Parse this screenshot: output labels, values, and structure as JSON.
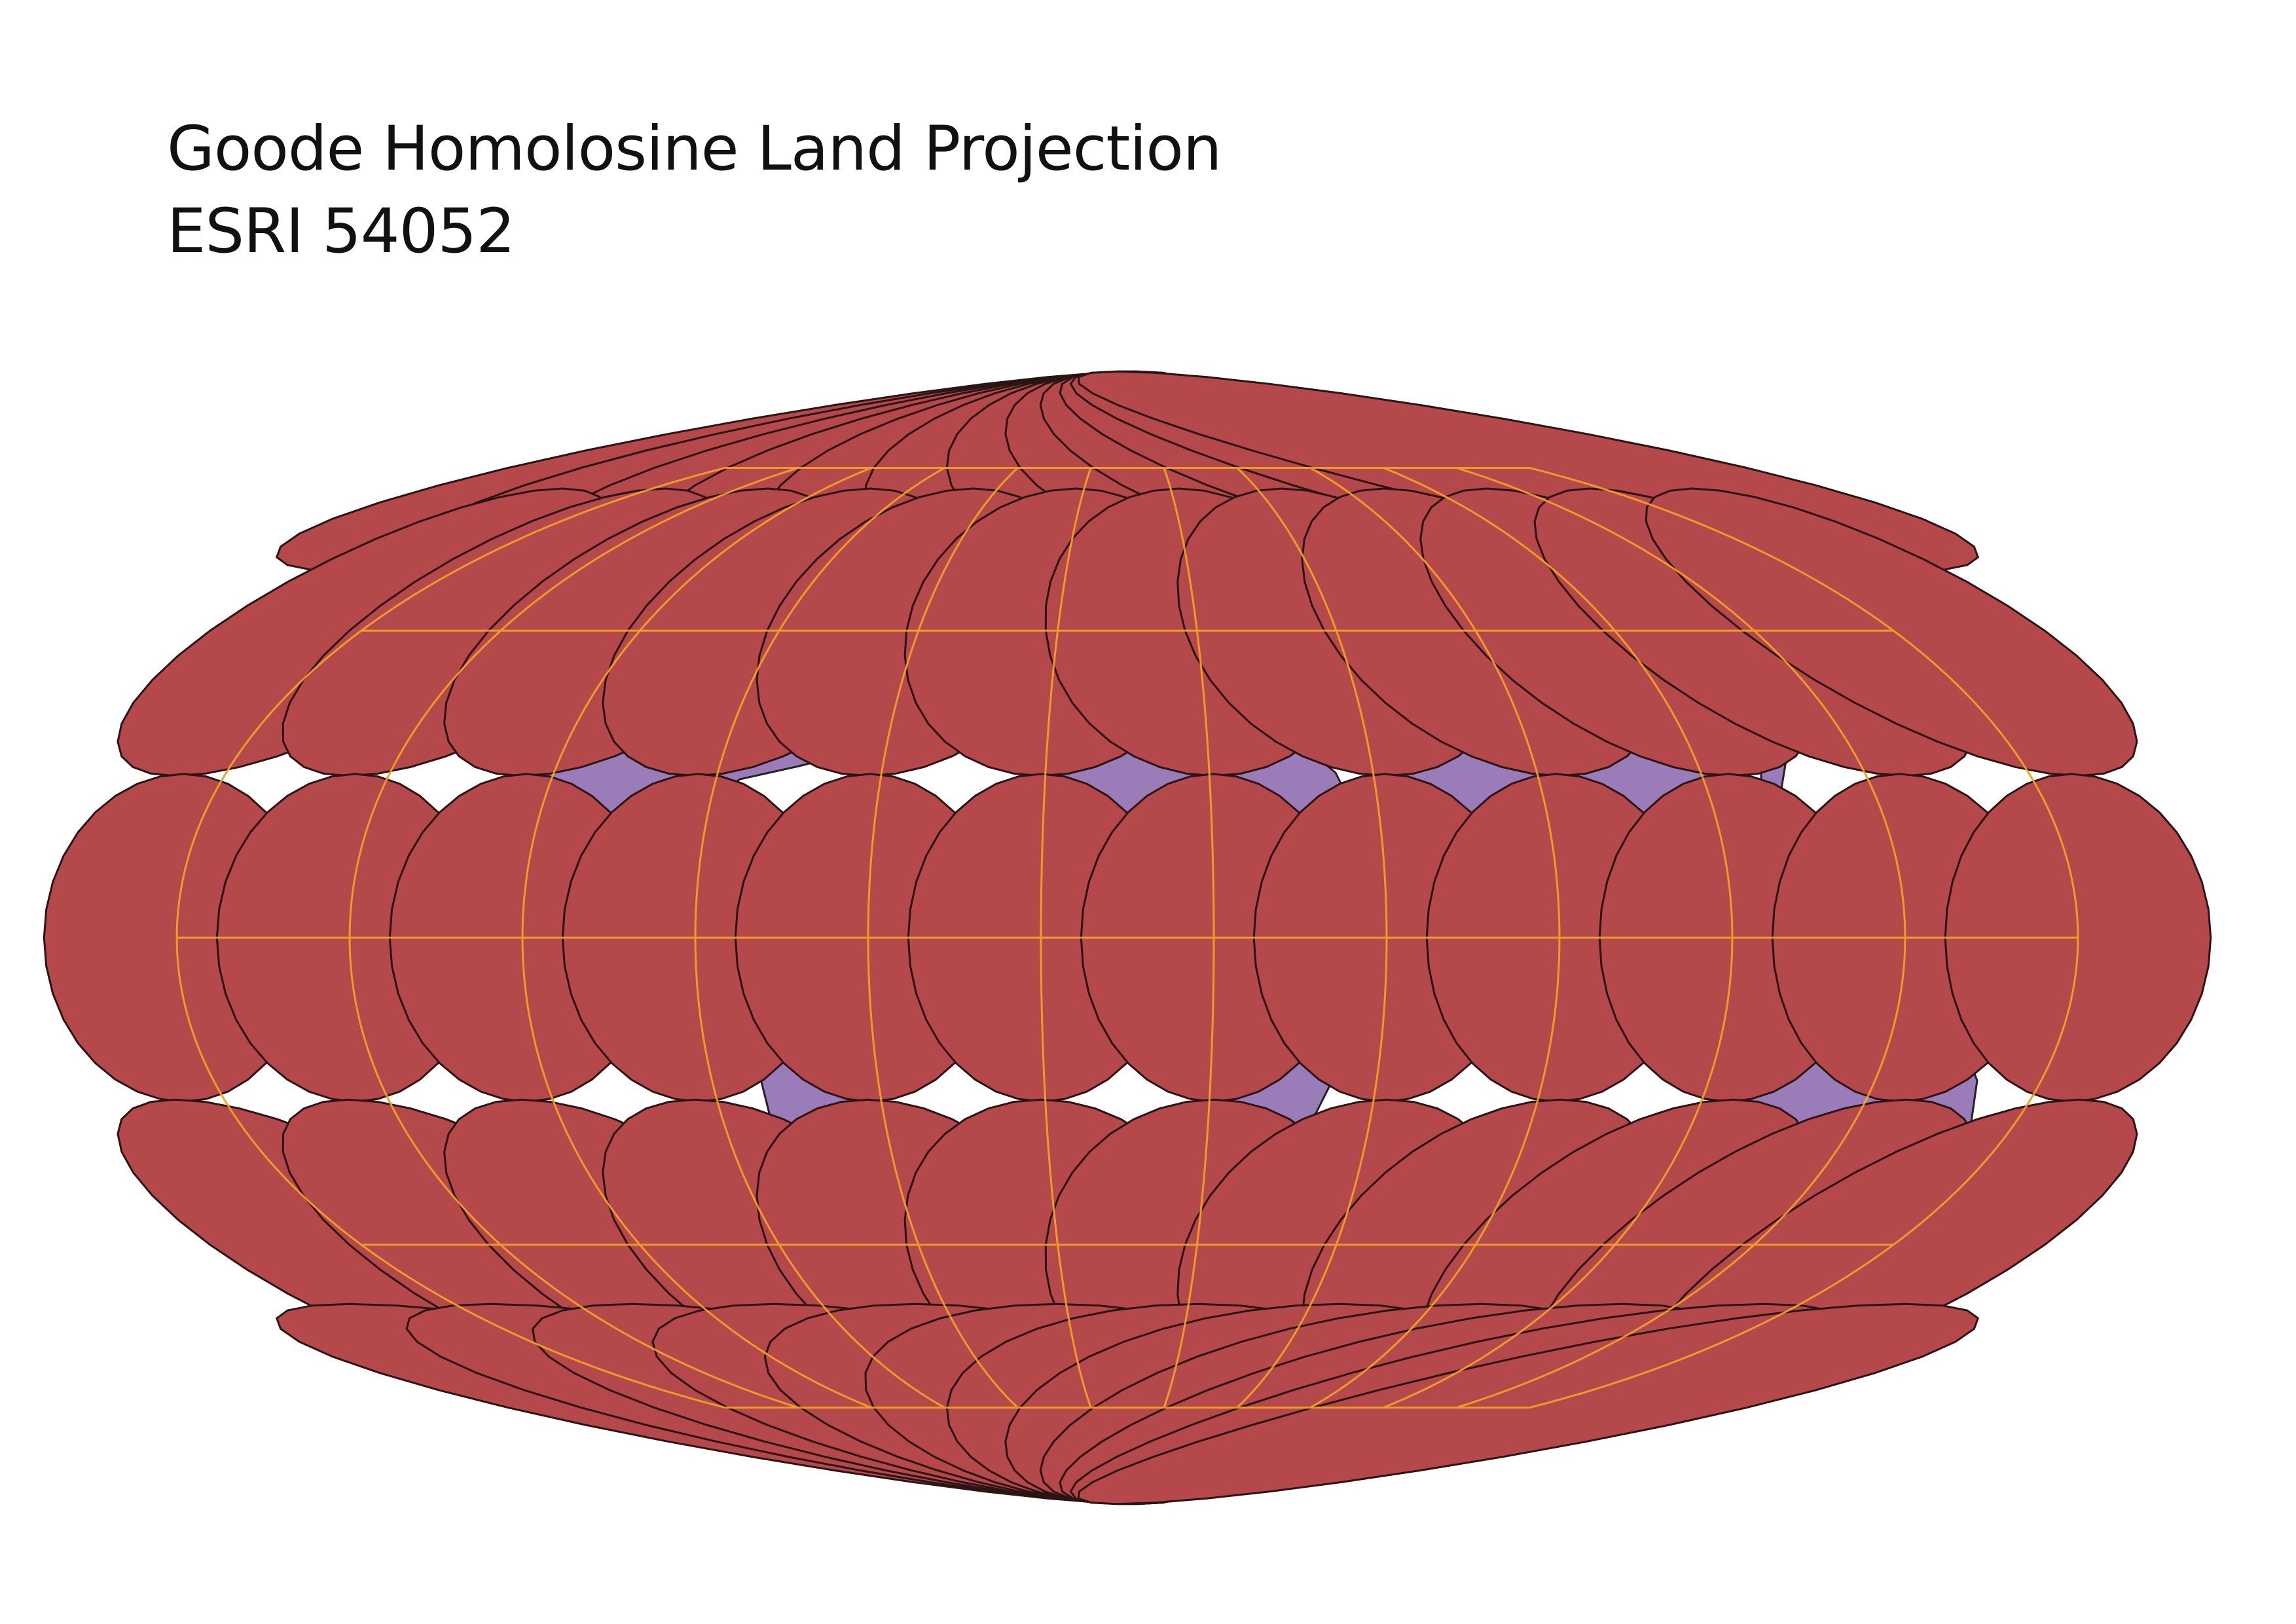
{
  "title": "Goode Homolosine Land Projection",
  "subtitle": "ESRI 54052",
  "colors": {
    "background": "#ffffff",
    "land": "#9a7db8",
    "coastline": "#222222",
    "graticule": "#f5a623",
    "ellipse_fill": "#b5484a",
    "ellipse_stroke": "#2a1414"
  },
  "graticule": {
    "latitudes": [
      75,
      45,
      0,
      -45,
      -75
    ],
    "longitudes": [
      -165,
      -135,
      -105,
      -75,
      -45,
      -15,
      15,
      45,
      75,
      105,
      135,
      165
    ]
  },
  "layers": [
    "land",
    "graticule",
    "tissot-indicatrix"
  ]
}
